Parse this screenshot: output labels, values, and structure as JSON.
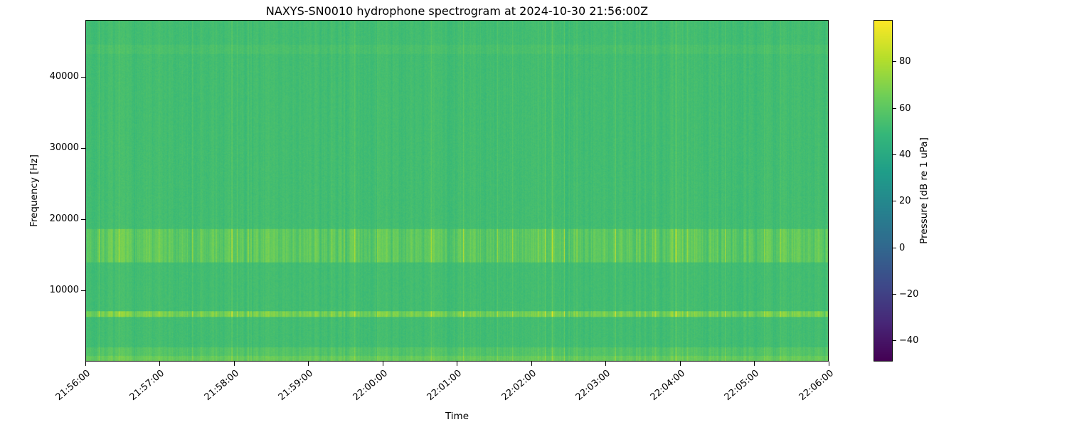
{
  "chart_data": {
    "type": "heatmap",
    "subtype": "spectrogram",
    "title": "NAXYS-SN0010 hydrophone spectrogram at 2024-10-30 21:56:00Z",
    "xlabel": "Time",
    "ylabel": "Frequency [Hz]",
    "x_tick_labels": [
      "21:56:00",
      "21:57:00",
      "21:58:00",
      "21:59:00",
      "22:00:00",
      "22:01:00",
      "22:02:00",
      "22:03:00",
      "22:04:00",
      "22:05:00",
      "22:06:00"
    ],
    "y_ticks": [
      10000,
      20000,
      30000,
      40000
    ],
    "y_range_hz": [
      0,
      48000
    ],
    "grid": false,
    "colormap": "viridis",
    "colormap_stops": [
      [
        68,
        1,
        84
      ],
      [
        71,
        39,
        119
      ],
      [
        62,
        73,
        137
      ],
      [
        49,
        104,
        142
      ],
      [
        38,
        130,
        142
      ],
      [
        31,
        158,
        137
      ],
      [
        53,
        183,
        121
      ],
      [
        110,
        206,
        88
      ],
      [
        181,
        222,
        43
      ],
      [
        253,
        231,
        37
      ]
    ],
    "colorbar": {
      "label": "Pressure [dB re 1 uPa]",
      "ticks": [
        80,
        60,
        40,
        20,
        0,
        -20,
        -40
      ],
      "vmin": -49,
      "vmax": 98,
      "position": "right"
    },
    "background_level_db": 52,
    "texture": {
      "streak_strength_db": 14,
      "streak_offset_db": -5,
      "pixel_noise_db": 4,
      "streak_spike_probability": 0.05,
      "default_streak_gain": 0.45
    },
    "features": [
      {
        "name": "surface-noise-floor-band",
        "freq_hz": [
          0,
          700
        ],
        "level_db": 61,
        "streak_gain": 0.9
      },
      {
        "name": "low-frequency-band",
        "freq_hz": [
          700,
          1900
        ],
        "level_db": 56,
        "streak_gain": 0.8
      },
      {
        "name": "tonal-line-6500hz",
        "freq_hz": [
          6200,
          7100
        ],
        "level_db": 63,
        "streak_gain": 1.7
      },
      {
        "name": "broadband-pulse-band-14-18khz",
        "freq_hz": [
          13900,
          18600
        ],
        "level_db": 57.5,
        "streak_gain": 1.5
      },
      {
        "name": "faint-line-44000hz",
        "freq_hz": [
          43400,
          44600
        ],
        "level_db": 54,
        "streak_gain": 0.5
      }
    ]
  }
}
